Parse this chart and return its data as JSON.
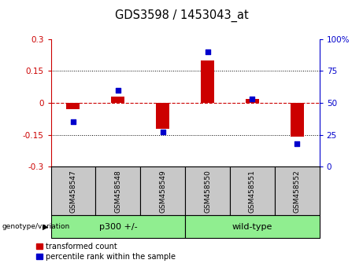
{
  "title": "GDS3598 / 1453043_at",
  "samples": [
    "GSM458547",
    "GSM458548",
    "GSM458549",
    "GSM458550",
    "GSM458551",
    "GSM458552"
  ],
  "transformed_count": [
    -0.03,
    0.03,
    -0.12,
    0.2,
    0.02,
    -0.16
  ],
  "percentile_rank": [
    35,
    60,
    27,
    90,
    53,
    18
  ],
  "ylim_left": [
    -0.3,
    0.3
  ],
  "ylim_right": [
    0,
    100
  ],
  "yticks_left": [
    -0.3,
    -0.15,
    0,
    0.15,
    0.3
  ],
  "yticks_right": [
    0,
    25,
    50,
    75,
    100
  ],
  "ytick_labels_left": [
    "-0.3",
    "-0.15",
    "0",
    "0.15",
    "0.3"
  ],
  "ytick_labels_right": [
    "0",
    "25",
    "50",
    "75",
    "100%"
  ],
  "bar_color": "#CC0000",
  "dot_color": "#0000CC",
  "zero_line_color": "#CC0000",
  "bg_sample_row": "#C8C8C8",
  "bg_group_row": "#90EE90",
  "group_labels": [
    "p300 +/-",
    "wild-type"
  ],
  "group_sizes": [
    3,
    3
  ],
  "legend_red_label": "transformed count",
  "legend_blue_label": "percentile rank within the sample",
  "group_label_prefix": "genotype/variation"
}
